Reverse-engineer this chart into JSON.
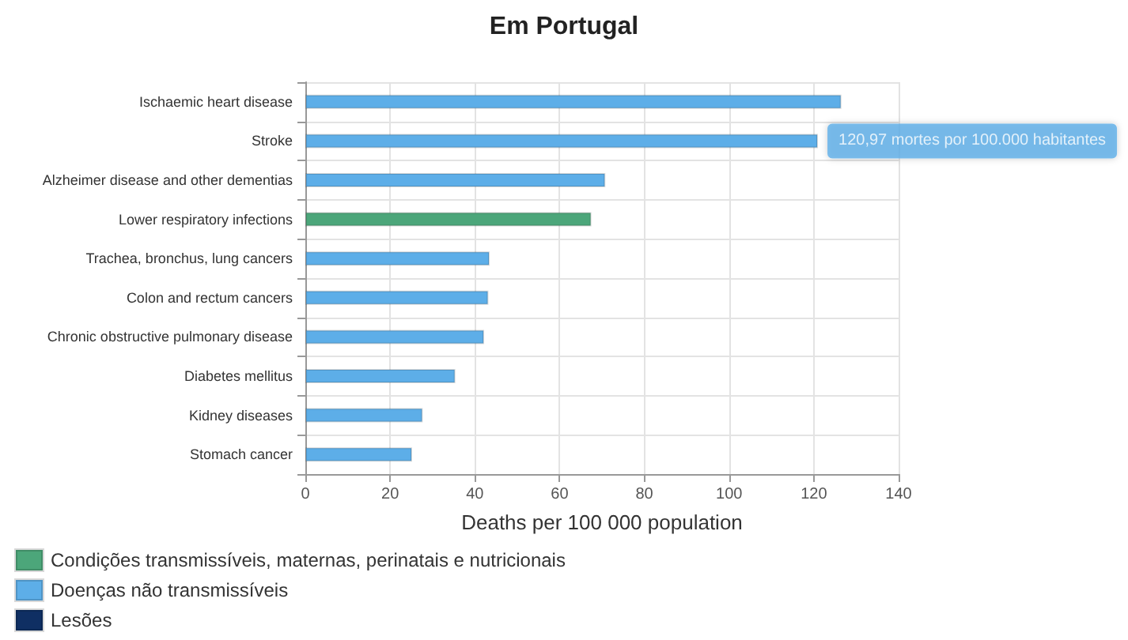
{
  "chart_data": {
    "type": "bar",
    "orientation": "horizontal",
    "stacked": true,
    "title": "Em Portugal",
    "xlabel": "Deaths per 100 000 population",
    "categories": [
      "Ischaemic heart disease",
      "Stroke",
      "Alzheimer disease and other dementias",
      "Lower respiratory infections",
      "Trachea, bronchus, lung cancers",
      "Colon and rectum cancers",
      "Chronic obstructive pulmonary disease",
      "Diabetes mellitus",
      "Kidney diseases",
      "Stomach cancer"
    ],
    "series": [
      {
        "name": "Condições transmissíveis, maternas, perinatais e nutricionais",
        "color": "#4ca67a",
        "values": [
          null,
          null,
          null,
          67.5,
          null,
          null,
          null,
          null,
          null,
          null
        ]
      },
      {
        "name": "Doenças não transmissíveis",
        "color": "#5daee8",
        "values": [
          126.5,
          120.97,
          70.8,
          null,
          43.5,
          43.2,
          42.2,
          35.4,
          27.7,
          25.2
        ]
      },
      {
        "name": "Lesões",
        "color": "#0f2f63",
        "values": [
          null,
          null,
          null,
          null,
          null,
          null,
          null,
          null,
          null,
          null
        ]
      }
    ],
    "xlim": [
      0,
      140
    ],
    "xticks": [
      0,
      20,
      40,
      60,
      80,
      100,
      120,
      140
    ],
    "grid": true,
    "legend": "bottom left",
    "annotations": [
      {
        "text": "120,97 mortes por 100.000 habitantes",
        "x": 120.97,
        "y": "Stroke"
      }
    ]
  }
}
